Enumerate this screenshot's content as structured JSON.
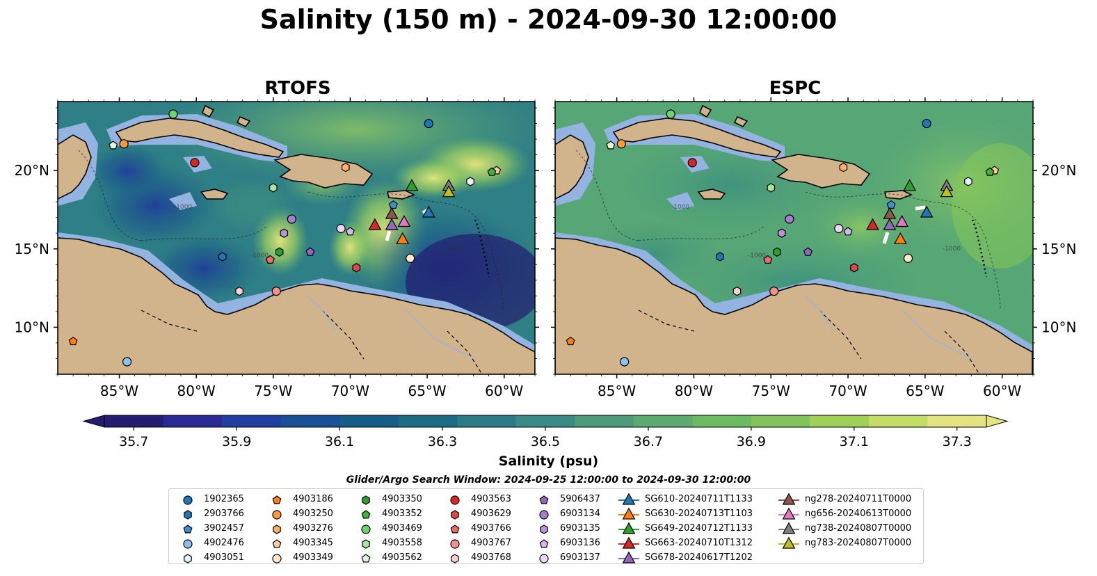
{
  "title": "Salinity (150 m) - 2024-09-30 12:00:00",
  "panels": [
    {
      "title": "RTOFS"
    },
    {
      "title": "ESPC"
    }
  ],
  "x_ticks": [
    "85°W",
    "80°W",
    "75°W",
    "70°W",
    "65°W",
    "60°W"
  ],
  "x_tick_values": [
    -85,
    -80,
    -75,
    -70,
    -65,
    -60
  ],
  "y_ticks": [
    "20°N",
    "15°N",
    "10°N"
  ],
  "y_tick_values": [
    20,
    15,
    10
  ],
  "map_extent": {
    "lon": [
      -89,
      -58
    ],
    "lat": [
      7,
      24.4
    ]
  },
  "contour_label": "-1000",
  "colorbar": {
    "title": "Salinity (psu)",
    "ticks": [
      "35.7",
      "35.9",
      "36.1",
      "36.3",
      "36.5",
      "36.7",
      "36.9",
      "37.1",
      "37.3"
    ],
    "range": [
      35.7,
      37.3
    ],
    "colors": [
      "#241c6e",
      "#2a2a96",
      "#1f40a0",
      "#184f96",
      "#165d88",
      "#1c6c86",
      "#2a7b86",
      "#3b8a86",
      "#4e9b7c",
      "#5daa72",
      "#6cba62",
      "#83c45a",
      "#a0d058",
      "#c4dc68",
      "#e4e482"
    ]
  },
  "search_window": "Glider/Argo Search Window: 2024-09-25 12:00:00 to 2024-09-30 12:00:00",
  "colors": {
    "land": "#d2b48c",
    "shelf": "#93b3e0",
    "deep": "#241c6e"
  },
  "legend": [
    {
      "label": "1902365",
      "marker": "circle",
      "color": "#1f77b4"
    },
    {
      "label": "2903766",
      "marker": "hexagon",
      "color": "#1f77b4"
    },
    {
      "label": "3902457",
      "marker": "pentagon",
      "color": "#3f8fd0"
    },
    {
      "label": "4902476",
      "marker": "circle",
      "color": "#8ec1e8"
    },
    {
      "label": "4903051",
      "marker": "hexagon",
      "color": "#e6f2fc"
    },
    {
      "label": "4903186",
      "marker": "pentagon",
      "color": "#ff7f0e"
    },
    {
      "label": "4903250",
      "marker": "circle",
      "color": "#ff9a3c"
    },
    {
      "label": "4903276",
      "marker": "hexagon",
      "color": "#ffb066"
    },
    {
      "label": "4903345",
      "marker": "pentagon",
      "color": "#ffcf99"
    },
    {
      "label": "4903349",
      "marker": "circle",
      "color": "#ffe8cc"
    },
    {
      "label": "4903350",
      "marker": "hexagon",
      "color": "#2ca02c"
    },
    {
      "label": "4903352",
      "marker": "pentagon",
      "color": "#3cb43c"
    },
    {
      "label": "4903469",
      "marker": "circle",
      "color": "#6dd46d"
    },
    {
      "label": "4903558",
      "marker": "hexagon",
      "color": "#a8e6a0"
    },
    {
      "label": "4903562",
      "marker": "pentagon",
      "color": "#e0f8d8"
    },
    {
      "label": "4903563",
      "marker": "circle",
      "color": "#d62728"
    },
    {
      "label": "4903629",
      "marker": "hexagon",
      "color": "#e04848"
    },
    {
      "label": "4903766",
      "marker": "pentagon",
      "color": "#f06a6a"
    },
    {
      "label": "4903767",
      "marker": "circle",
      "color": "#f59090"
    },
    {
      "label": "4903768",
      "marker": "hexagon",
      "color": "#fbd0d0"
    },
    {
      "label": "5906437",
      "marker": "pentagon",
      "color": "#9467bd"
    },
    {
      "label": "6903134",
      "marker": "circle",
      "color": "#a57ed0"
    },
    {
      "label": "6903135",
      "marker": "hexagon",
      "color": "#b894e0"
    },
    {
      "label": "6903136",
      "marker": "pentagon",
      "color": "#d2b8f0"
    },
    {
      "label": "6903137",
      "marker": "circle",
      "color": "#ead8fc"
    },
    {
      "label": "SG610-20240711T1133",
      "marker": "triangle",
      "color": "#1f77b4"
    },
    {
      "label": "SG630-20240713T1103",
      "marker": "triangle",
      "color": "#ff7f0e"
    },
    {
      "label": "SG649-20240712T1133",
      "marker": "triangle",
      "color": "#2ca02c"
    },
    {
      "label": "SG663-20240710T1312",
      "marker": "triangle",
      "color": "#d62728"
    },
    {
      "label": "SG678-20240617T1202",
      "marker": "triangle",
      "color": "#9467bd"
    },
    {
      "label": "ng278-20240711T0000",
      "marker": "triangle",
      "color": "#8c564b"
    },
    {
      "label": "ng656-20240613T0000",
      "marker": "triangle",
      "color": "#e377c2"
    },
    {
      "label": "ng738-20240807T0000",
      "marker": "triangle",
      "color": "#7f7f7f"
    },
    {
      "label": "ng783-20240807T0000",
      "marker": "triangle",
      "color": "#bcbd22"
    }
  ],
  "observations": [
    {
      "id": "1902365",
      "lon": -64.9,
      "lat": 23.0
    },
    {
      "id": "2903766",
      "lon": -78.3,
      "lat": 14.5
    },
    {
      "id": "3902457",
      "lon": -67.2,
      "lat": 17.8
    },
    {
      "id": "4902476",
      "lon": -84.5,
      "lat": 7.8
    },
    {
      "id": "4903051",
      "lon": -62.2,
      "lat": 19.3
    },
    {
      "id": "4903186",
      "lon": -88.0,
      "lat": 9.1
    },
    {
      "id": "4903250",
      "lon": -84.7,
      "lat": 21.7
    },
    {
      "id": "4903276",
      "lon": -70.3,
      "lat": 20.2
    },
    {
      "id": "4903345",
      "lon": -60.5,
      "lat": 20.0
    },
    {
      "id": "4903349",
      "lon": -66.1,
      "lat": 14.4
    },
    {
      "id": "4903350",
      "lon": -74.6,
      "lat": 14.8
    },
    {
      "id": "4903352",
      "lon": -60.8,
      "lat": 19.9
    },
    {
      "id": "4903469",
      "lon": -81.5,
      "lat": 23.6
    },
    {
      "id": "4903558",
      "lon": -75.0,
      "lat": 18.9
    },
    {
      "id": "4903562",
      "lon": -85.4,
      "lat": 21.6
    },
    {
      "id": "4903563",
      "lon": -80.1,
      "lat": 20.5
    },
    {
      "id": "4903629",
      "lon": -69.6,
      "lat": 13.8
    },
    {
      "id": "4903766",
      "lon": -75.2,
      "lat": 14.3
    },
    {
      "id": "4903767",
      "lon": -74.8,
      "lat": 12.3
    },
    {
      "id": "4903768",
      "lon": -77.2,
      "lat": 12.3
    },
    {
      "id": "5906437",
      "lon": -72.6,
      "lat": 14.8
    },
    {
      "id": "6903134",
      "lon": -73.8,
      "lat": 16.9
    },
    {
      "id": "6903135",
      "lon": -74.3,
      "lat": 16.0
    },
    {
      "id": "6903136",
      "lon": -70.0,
      "lat": 16.1
    },
    {
      "id": "6903137",
      "lon": -70.6,
      "lat": 16.3
    },
    {
      "id": "SG610-20240711T1133",
      "lon": -64.9,
      "lat": 17.3
    },
    {
      "id": "SG630-20240713T1103",
      "lon": -66.6,
      "lat": 15.6
    },
    {
      "id": "SG649-20240712T1133",
      "lon": -66.0,
      "lat": 19.0
    },
    {
      "id": "SG663-20240710T1312",
      "lon": -68.4,
      "lat": 16.5
    },
    {
      "id": "SG678-20240617T1202",
      "lon": -67.3,
      "lat": 16.5
    },
    {
      "id": "ng278-20240711T0000",
      "lon": -67.3,
      "lat": 17.2
    },
    {
      "id": "ng656-20240613T0000",
      "lon": -66.5,
      "lat": 16.7
    },
    {
      "id": "ng738-20240807T0000",
      "lon": -63.6,
      "lat": 19.0
    },
    {
      "id": "ng783-20240807T0000",
      "lon": -63.6,
      "lat": 18.6
    }
  ]
}
